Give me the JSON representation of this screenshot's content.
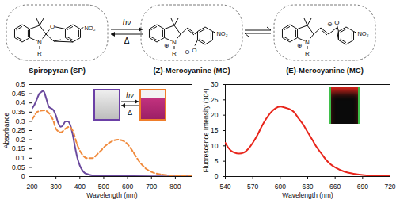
{
  "scheme": {
    "structures": [
      {
        "label": "Spiropyran (SP)",
        "variant": "spiro",
        "atoms": [
          "N",
          "R",
          "O",
          "NO₂"
        ]
      },
      {
        "label": "(Z)-Merocyanine (MC)",
        "variant": "z",
        "atoms": [
          "N",
          "R",
          "⊕",
          "O",
          "⊖",
          "NO₂"
        ]
      },
      {
        "label": "(E)-Merocyanine (MC)",
        "variant": "e",
        "atoms": [
          "N",
          "R",
          "⊕",
          "O",
          "⊖",
          "NO₂"
        ]
      }
    ],
    "arrows": [
      {
        "type": "reversible",
        "above": "hν",
        "below": "Δ"
      },
      {
        "type": "equilibrium"
      }
    ]
  },
  "chart_data": [
    {
      "type": "line",
      "xlabel": "Wavelength (nm)",
      "ylabel": "Absorbance",
      "xlim": [
        200,
        870
      ],
      "ylim": [
        0,
        0.5
      ],
      "xticks": [
        200,
        300,
        400,
        500,
        600,
        700,
        800
      ],
      "yticks": [
        0,
        0.05,
        0.1,
        0.15,
        0.2,
        0.25,
        0.3,
        0.35,
        0.4,
        0.45,
        0.5
      ],
      "annotations": [
        "hν",
        "Δ"
      ],
      "series": [
        {
          "color": "#6b4a9e",
          "line_style": "solid",
          "x": [
            200,
            210,
            220,
            230,
            240,
            245,
            250,
            260,
            270,
            280,
            290,
            300,
            310,
            320,
            330,
            340,
            350,
            360,
            370,
            380,
            390,
            400,
            410,
            420,
            440,
            460,
            500,
            600,
            700,
            800,
            870
          ],
          "values": [
            0.37,
            0.39,
            0.42,
            0.45,
            0.46,
            0.465,
            0.46,
            0.42,
            0.38,
            0.37,
            0.36,
            0.33,
            0.29,
            0.27,
            0.28,
            0.3,
            0.3,
            0.28,
            0.23,
            0.16,
            0.1,
            0.06,
            0.035,
            0.02,
            0.01,
            0.005,
            0.003,
            0.002,
            0.001,
            0.001,
            0.001
          ]
        },
        {
          "color": "#f08a3c",
          "line_style": "dashed",
          "x": [
            200,
            210,
            220,
            230,
            250,
            270,
            290,
            300,
            320,
            340,
            355,
            370,
            390,
            410,
            430,
            450,
            480,
            510,
            540,
            560,
            580,
            600,
            620,
            650,
            680,
            700,
            750,
            800,
            870
          ],
          "values": [
            0.31,
            0.33,
            0.35,
            0.355,
            0.36,
            0.345,
            0.3,
            0.26,
            0.24,
            0.26,
            0.27,
            0.25,
            0.17,
            0.12,
            0.1,
            0.1,
            0.13,
            0.17,
            0.195,
            0.2,
            0.195,
            0.175,
            0.14,
            0.08,
            0.04,
            0.025,
            0.01,
            0.005,
            0.003
          ]
        }
      ]
    },
    {
      "type": "line",
      "xlabel": "Wavelength (nm)",
      "ylabel": "Fluorescence Intensity (10⁴)",
      "xlim": [
        540,
        720
      ],
      "ylim": [
        0,
        30
      ],
      "xticks": [
        540,
        570,
        600,
        630,
        660,
        690,
        720
      ],
      "yticks": [
        0,
        5,
        10,
        15,
        20,
        25,
        30
      ],
      "series": [
        {
          "color": "#e8261c",
          "line_style": "solid",
          "x": [
            540,
            543,
            546,
            550,
            555,
            560,
            565,
            570,
            575,
            580,
            585,
            590,
            595,
            600,
            605,
            610,
            615,
            620,
            625,
            630,
            635,
            640,
            645,
            650,
            655,
            660,
            670,
            680,
            690,
            700,
            710,
            720
          ],
          "values": [
            11,
            9.5,
            8.5,
            7.8,
            7.5,
            7.8,
            9,
            11,
            13.5,
            16.5,
            19,
            21,
            22.3,
            22.8,
            22.5,
            22,
            21,
            19,
            17,
            14.5,
            12,
            9.5,
            7.5,
            5.5,
            4,
            3,
            1.6,
            0.9,
            0.5,
            0.3,
            0.2,
            0.2
          ]
        }
      ]
    }
  ]
}
